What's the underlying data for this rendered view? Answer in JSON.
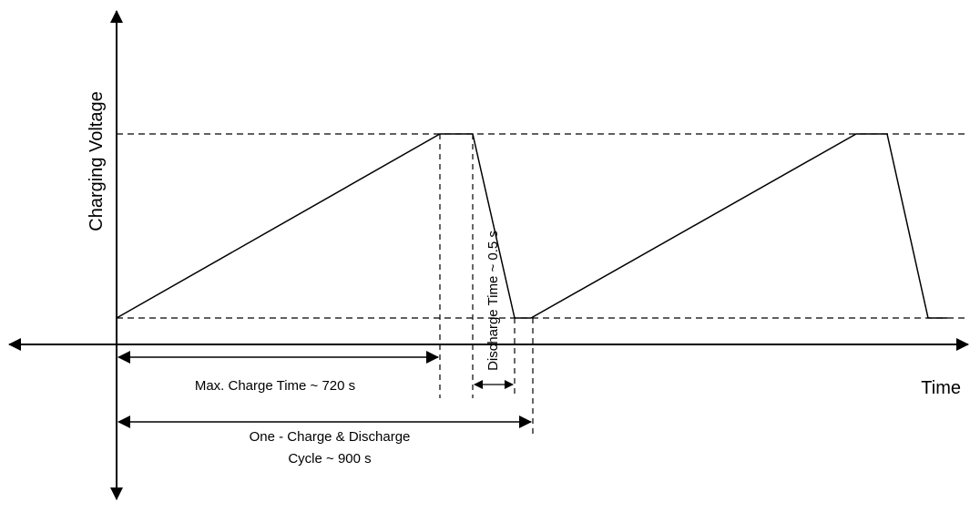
{
  "labels": {
    "y_axis": "Charging Voltage",
    "x_axis": "Time",
    "max_charge": "Max. Charge Time ~ 720 s",
    "discharge": "Discharge Time ~ 0.5 s",
    "cycle_line1": "One - Charge & Discharge",
    "cycle_line2": "Cycle ~ 900 s"
  }
}
